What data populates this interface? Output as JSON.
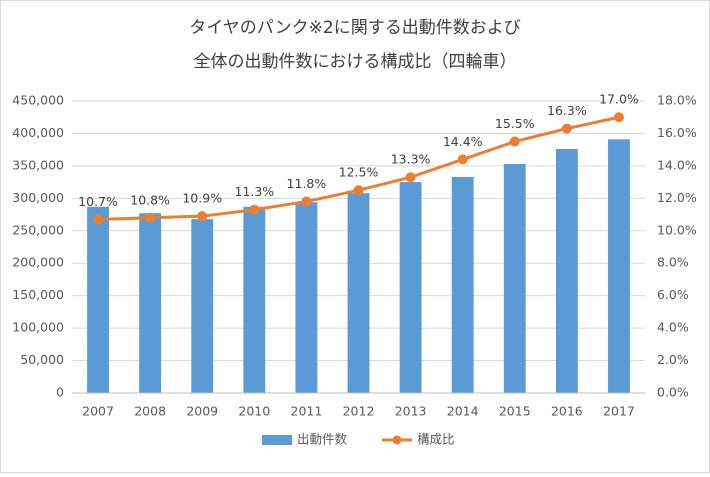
{
  "chart_data": {
    "type": "bar",
    "title": [
      "タイヤのパンク※2に関する出動件数および",
      "全体の出動件数における構成比（四輪車）"
    ],
    "categories": [
      "2007",
      "2008",
      "2009",
      "2010",
      "2011",
      "2012",
      "2013",
      "2014",
      "2015",
      "2016",
      "2017"
    ],
    "series": [
      {
        "name": "出動件数",
        "type": "bar",
        "color": "#5b9bd5",
        "values": [
          287000,
          277000,
          268000,
          287000,
          294000,
          308000,
          325000,
          333000,
          353000,
          376000,
          391000
        ]
      },
      {
        "name": "構成比",
        "type": "line",
        "axis": "y2",
        "color": "#ed7d31",
        "values": [
          10.7,
          10.8,
          10.9,
          11.3,
          11.8,
          12.5,
          13.3,
          14.4,
          15.5,
          16.3,
          17.0
        ],
        "value_labels": [
          "10.7%",
          "10.8%",
          "10.9%",
          "11.3%",
          "11.8%",
          "12.5%",
          "13.3%",
          "14.4%",
          "15.5%",
          "16.3%",
          "17.0%"
        ]
      }
    ],
    "ylim": [
      0,
      450000
    ],
    "yticks": [
      0,
      {
        "value": 50000,
        "label": "50,000"
      },
      {
        "value": 100000,
        "label": "100,000"
      },
      {
        "value": 150000,
        "label": "150,000"
      },
      {
        "value": 200000,
        "label": "200,000"
      },
      {
        "value": 250000,
        "label": "250,000"
      },
      {
        "value": 300000,
        "label": "300,000"
      },
      {
        "value": 350000,
        "label": "350,000"
      },
      {
        "value": 400000,
        "label": "400,000"
      },
      {
        "value": 450000,
        "label": "450,000"
      }
    ],
    "y2lim": [
      0,
      18
    ],
    "y2ticks": [
      {
        "value": 0,
        "label": "0.0%"
      },
      {
        "value": 2,
        "label": "2.0%"
      },
      {
        "value": 4,
        "label": "4.0%"
      },
      {
        "value": 6,
        "label": "6.0%"
      },
      {
        "value": 8,
        "label": "8.0%"
      },
      {
        "value": 10,
        "label": "10.0%"
      },
      {
        "value": 12,
        "label": "12.0%"
      },
      {
        "value": 14,
        "label": "14.0%"
      },
      {
        "value": 16,
        "label": "16.0%"
      },
      {
        "value": 18,
        "label": "18.0%"
      }
    ],
    "grid": true,
    "legend": "bottom"
  }
}
